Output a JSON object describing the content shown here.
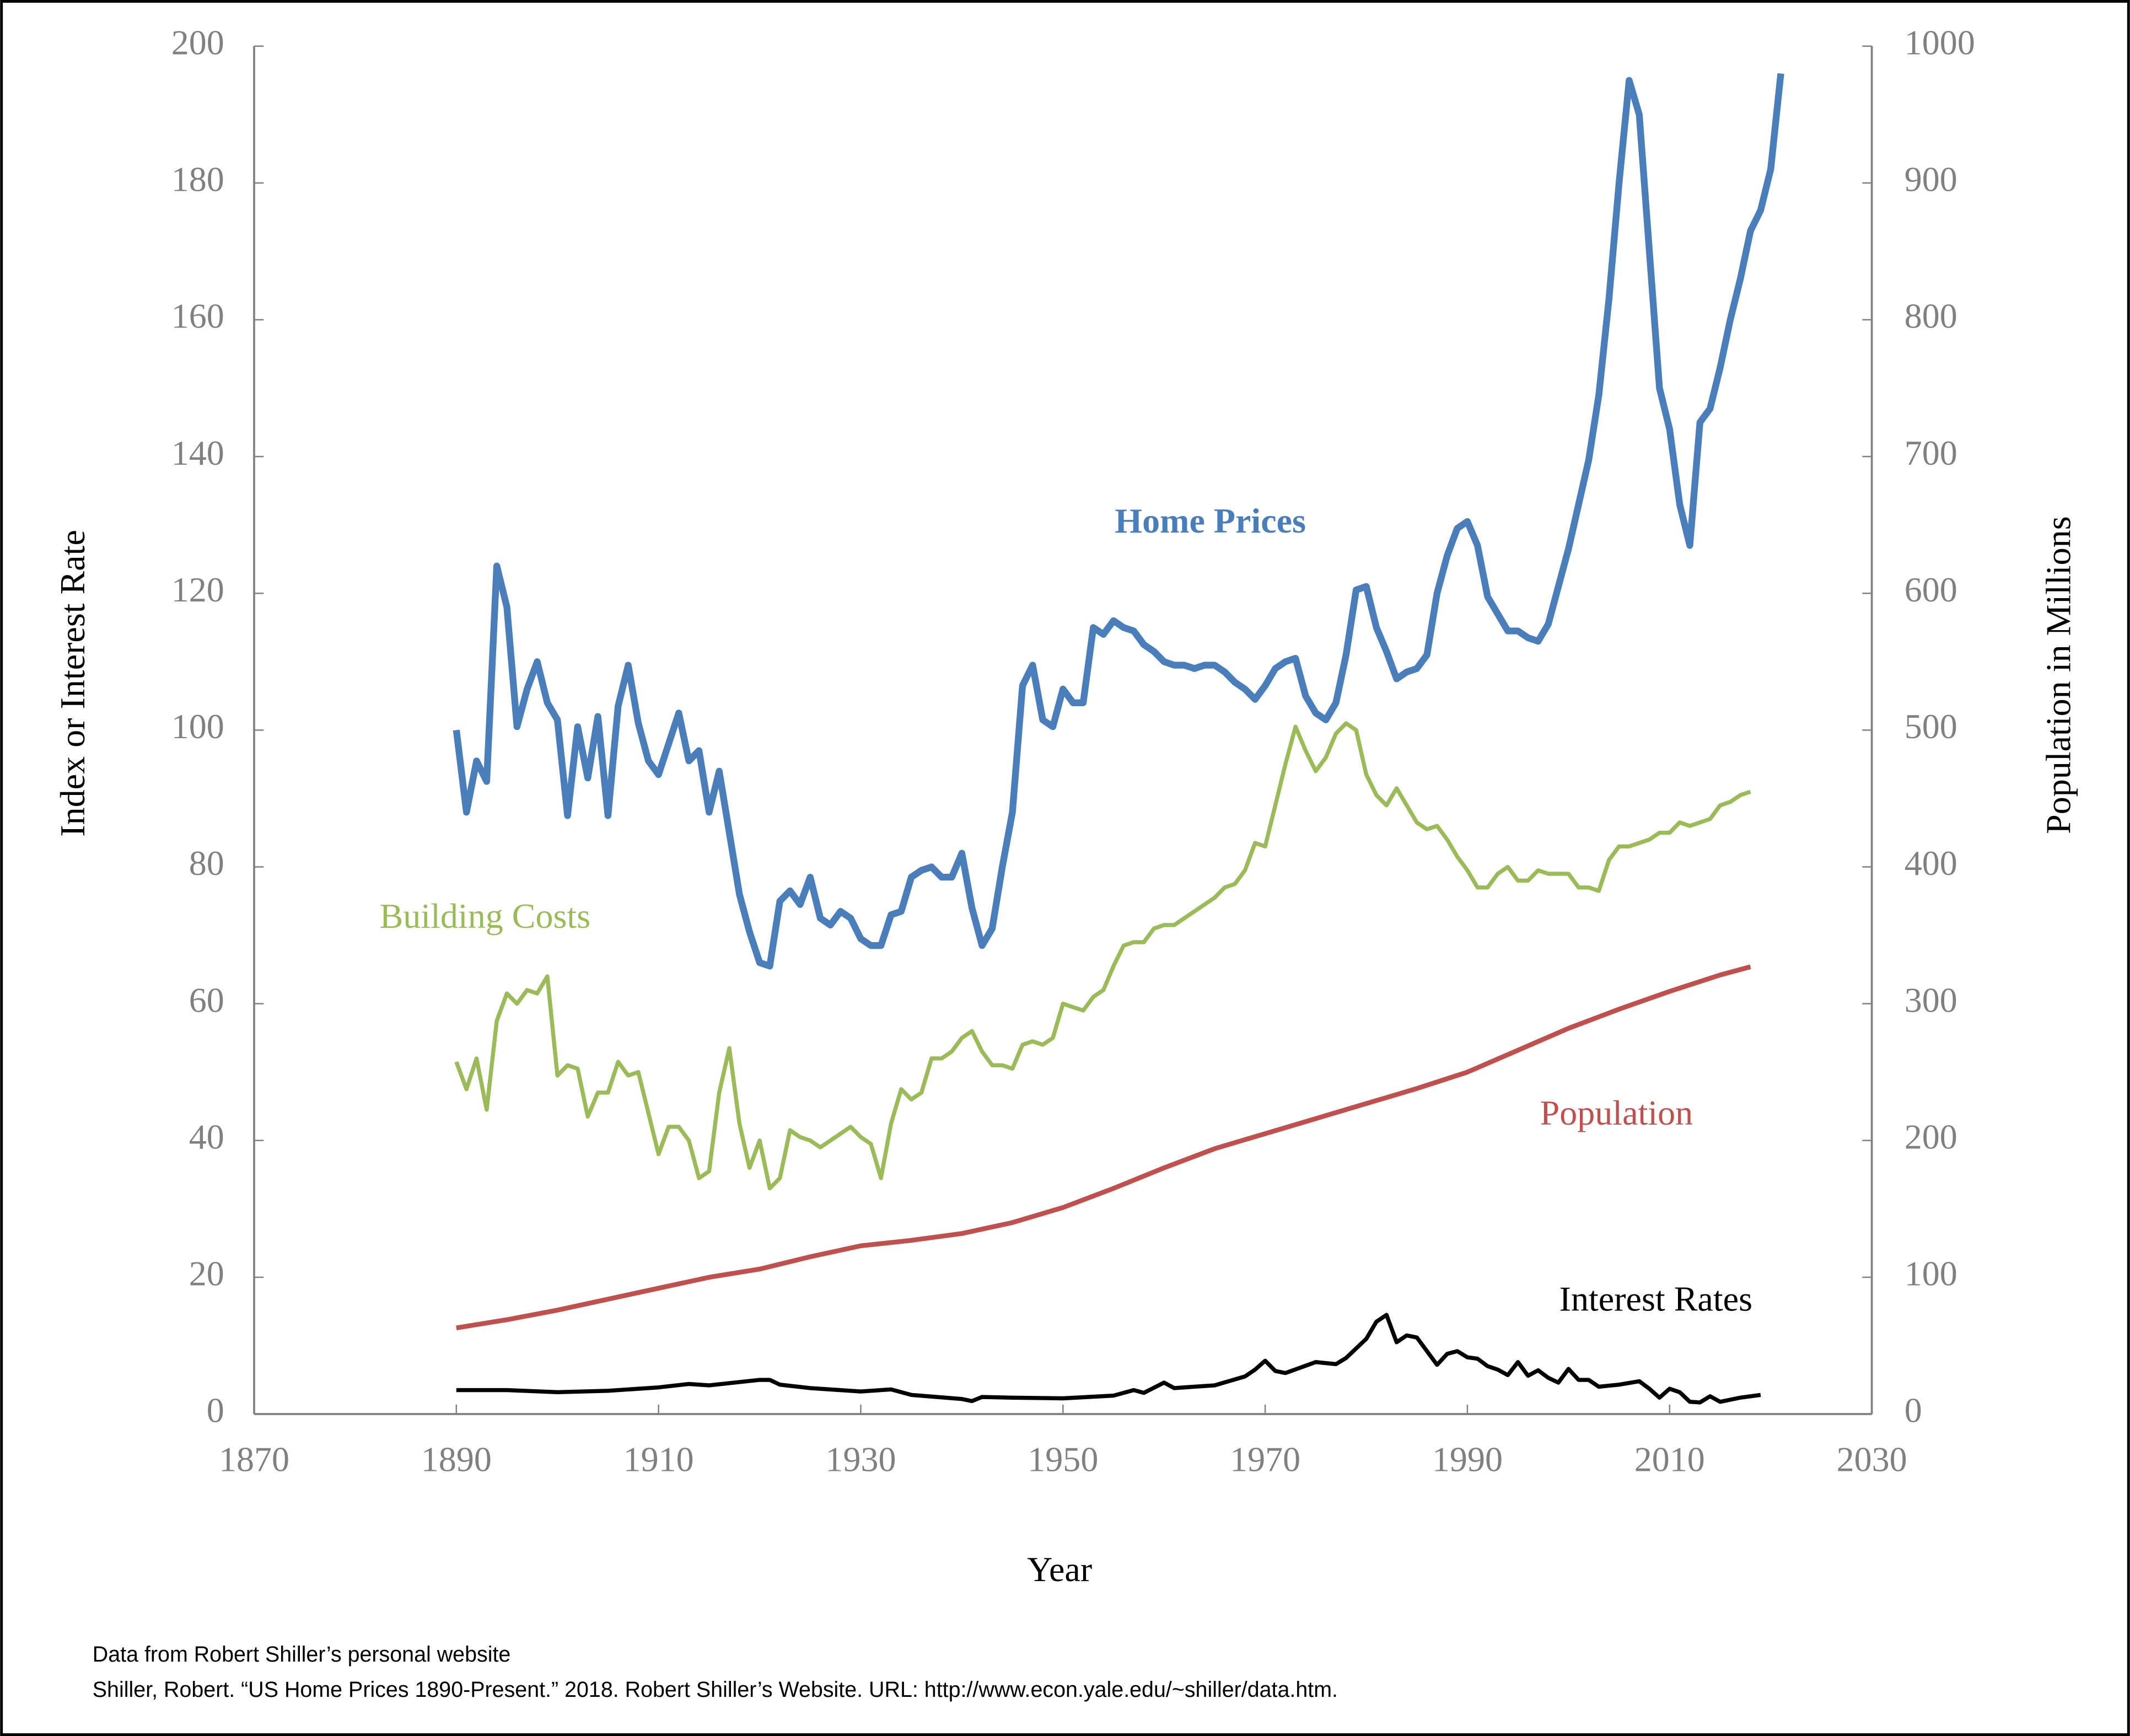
{
  "chart_data": {
    "type": "line",
    "xlabel": "Year",
    "ylabel": "Index or Interest Rate",
    "y2label": "Population in Millions",
    "xlim": [
      1870,
      2030
    ],
    "xticks": [
      1870,
      1890,
      1910,
      1930,
      1950,
      1970,
      1990,
      2010,
      2030
    ],
    "ylim": [
      0,
      200
    ],
    "yticks": [
      0,
      20,
      40,
      60,
      80,
      100,
      120,
      140,
      160,
      180,
      200
    ],
    "y2lim": [
      0,
      1000
    ],
    "y2ticks": [
      0,
      100,
      200,
      300,
      400,
      500,
      600,
      700,
      800,
      900,
      1000
    ],
    "series": [
      {
        "name": "Home Prices",
        "color": "#4a7ebb",
        "x": [
          1890,
          1891,
          1892,
          1893,
          1894,
          1895,
          1896,
          1897,
          1898,
          1899,
          1900,
          1901,
          1902,
          1903,
          1904,
          1905,
          1906,
          1907,
          1908,
          1909,
          1910,
          1911,
          1912,
          1913,
          1914,
          1915,
          1916,
          1917,
          1918,
          1919,
          1920,
          1921,
          1922,
          1923,
          1924,
          1925,
          1926,
          1927,
          1928,
          1929,
          1930,
          1931,
          1932,
          1933,
          1934,
          1935,
          1936,
          1937,
          1938,
          1939,
          1940,
          1941,
          1942,
          1943,
          1944,
          1945,
          1946,
          1947,
          1948,
          1949,
          1950,
          1951,
          1952,
          1953,
          1954,
          1955,
          1956,
          1957,
          1958,
          1959,
          1960,
          1961,
          1962,
          1963,
          1964,
          1965,
          1966,
          1967,
          1968,
          1969,
          1970,
          1971,
          1972,
          1973,
          1974,
          1975,
          1976,
          1977,
          1978,
          1979,
          1980,
          1981,
          1982,
          1983,
          1984,
          1985,
          1986,
          1987,
          1988,
          1989,
          1990,
          1991,
          1992,
          1993,
          1994,
          1995,
          1996,
          1997,
          1998,
          1999,
          2000,
          2001,
          2002,
          2003,
          2004,
          2005,
          2006,
          2007,
          2008,
          2009,
          2010,
          2011,
          2012,
          2013,
          2014,
          2015,
          2016,
          2017,
          2018,
          2019,
          2020,
          2021
        ],
        "values": [
          100,
          88,
          95.5,
          92.5,
          124,
          118,
          100.5,
          106,
          110,
          104,
          101.5,
          87.5,
          100.5,
          93,
          102,
          87.5,
          103.5,
          109.5,
          101,
          95.5,
          93.5,
          98,
          102.5,
          95.5,
          97,
          88,
          94,
          85,
          76,
          70.5,
          66,
          65.5,
          75,
          76.5,
          74.5,
          78.5,
          72.5,
          71.5,
          73.5,
          72.5,
          69.5,
          68.5,
          68.5,
          73,
          73.5,
          78.5,
          79.5,
          80,
          78.5,
          78.5,
          82,
          74,
          68.5,
          71,
          80,
          88,
          106.5,
          109.5,
          101.5,
          100.5,
          106,
          104,
          104,
          115,
          114,
          116,
          115,
          114.5,
          112.5,
          111.5,
          110,
          109.5,
          109.5,
          109,
          109.5,
          109.5,
          108.5,
          107,
          106,
          104.5,
          106.5,
          109,
          110,
          110.5,
          105,
          102.5,
          101.5,
          104,
          111,
          120.5,
          121,
          115,
          111.5,
          107.5,
          108.5,
          109,
          111,
          120,
          125.5,
          129.5,
          130.5,
          127,
          119.5,
          117,
          114.5,
          114.5,
          113.5,
          113,
          115.5,
          121,
          126.5,
          133,
          139.5,
          149,
          163,
          180,
          195,
          190,
          170,
          150,
          144,
          133,
          127,
          145,
          147,
          153,
          160,
          166,
          173,
          176,
          182,
          196
        ]
      },
      {
        "name": "Building Costs",
        "color": "#9bbb59",
        "x": [
          1890,
          1891,
          1892,
          1893,
          1894,
          1895,
          1896,
          1897,
          1898,
          1899,
          1900,
          1901,
          1902,
          1903,
          1904,
          1905,
          1906,
          1907,
          1908,
          1909,
          1910,
          1911,
          1912,
          1913,
          1914,
          1915,
          1916,
          1917,
          1918,
          1919,
          1920,
          1921,
          1922,
          1923,
          1924,
          1925,
          1926,
          1927,
          1928,
          1929,
          1930,
          1931,
          1932,
          1933,
          1934,
          1935,
          1936,
          1937,
          1938,
          1939,
          1940,
          1941,
          1942,
          1943,
          1944,
          1945,
          1946,
          1947,
          1948,
          1949,
          1950,
          1951,
          1952,
          1953,
          1954,
          1955,
          1956,
          1957,
          1958,
          1959,
          1960,
          1961,
          1962,
          1963,
          1964,
          1965,
          1966,
          1967,
          1968,
          1969,
          1970,
          1971,
          1972,
          1973,
          1974,
          1975,
          1976,
          1977,
          1978,
          1979,
          1980,
          1981,
          1982,
          1983,
          1984,
          1985,
          1986,
          1987,
          1988,
          1989,
          1990,
          1991,
          1992,
          1993,
          1994,
          1995,
          1996,
          1997,
          1998,
          1999,
          2000,
          2001,
          2002,
          2003,
          2004,
          2005,
          2006,
          2007,
          2008,
          2009,
          2010,
          2011,
          2012,
          2013,
          2014,
          2015,
          2016,
          2017,
          2018
        ],
        "values": [
          51.5,
          47.5,
          52,
          44.5,
          57.5,
          61.5,
          60,
          62,
          61.5,
          64,
          49.5,
          51,
          50.5,
          43.5,
          47,
          47,
          51.5,
          49.5,
          50,
          44,
          38,
          42,
          42,
          40,
          34.5,
          35.5,
          47,
          53.5,
          42.5,
          36,
          40,
          33,
          34.5,
          41.5,
          40.5,
          40,
          39,
          40,
          41,
          42,
          40.5,
          39.5,
          34.5,
          42.5,
          47.5,
          46,
          47,
          52,
          52,
          53,
          55,
          56,
          53,
          51,
          51,
          50.5,
          54,
          54.5,
          54,
          55,
          60,
          59.5,
          59,
          61,
          62,
          65.5,
          68.5,
          69,
          69,
          71,
          71.5,
          71.5,
          72.5,
          73.5,
          74.5,
          75.5,
          77,
          77.5,
          79.5,
          83.5,
          83,
          89,
          95,
          100.5,
          97,
          94,
          96,
          99.5,
          101,
          100,
          93.5,
          90.5,
          89,
          91.5,
          89,
          86.5,
          85.5,
          86,
          84,
          81.5,
          79.5,
          77,
          77,
          79,
          80,
          78,
          78,
          79.5,
          79,
          79,
          79,
          77,
          77,
          76.5,
          81,
          83,
          83,
          83.5,
          84,
          85,
          85,
          86.5,
          86,
          86.5,
          87,
          89,
          89.5,
          90.5,
          91
        ]
      },
      {
        "name": "Population",
        "color": "#c0504d",
        "axis": "y2",
        "x": [
          1890,
          1895,
          1900,
          1905,
          1910,
          1915,
          1920,
          1925,
          1930,
          1935,
          1940,
          1945,
          1950,
          1955,
          1960,
          1965,
          1970,
          1975,
          1980,
          1985,
          1990,
          1995,
          2000,
          2005,
          2010,
          2015,
          2018
        ],
        "values": [
          63,
          69,
          76,
          84,
          92,
          100,
          106,
          115,
          123,
          127,
          132,
          140,
          151,
          165,
          180,
          194,
          205,
          216,
          227,
          238,
          250,
          266,
          282,
          296,
          309,
          321,
          327
        ]
      },
      {
        "name": "Interest Rates",
        "color": "#000000",
        "x": [
          1890,
          1895,
          1900,
          1905,
          1910,
          1913,
          1915,
          1920,
          1921,
          1922,
          1925,
          1930,
          1933,
          1935,
          1940,
          1941,
          1942,
          1945,
          1950,
          1955,
          1957,
          1958,
          1960,
          1961,
          1965,
          1968,
          1969,
          1970,
          1971,
          1972,
          1975,
          1977,
          1978,
          1980,
          1981,
          1982,
          1983,
          1984,
          1985,
          1987,
          1988,
          1989,
          1990,
          1991,
          1992,
          1993,
          1994,
          1995,
          1996,
          1997,
          1998,
          1999,
          2000,
          2001,
          2002,
          2003,
          2005,
          2007,
          2008,
          2009,
          2010,
          2011,
          2012,
          2013,
          2014,
          2015,
          2017,
          2019
        ],
        "values": [
          3.5,
          3.5,
          3.2,
          3.4,
          3.9,
          4.4,
          4.2,
          5,
          5,
          4.3,
          3.8,
          3.3,
          3.6,
          2.8,
          2.2,
          1.9,
          2.5,
          2.4,
          2.3,
          2.7,
          3.5,
          3.1,
          4.6,
          3.8,
          4.2,
          5.5,
          6.5,
          7.8,
          6.3,
          6,
          7.6,
          7.3,
          8.2,
          11,
          13.5,
          14.5,
          10.5,
          11.5,
          11.2,
          7.2,
          8.8,
          9.2,
          8.3,
          8.1,
          7,
          6.5,
          5.7,
          7.6,
          5.6,
          6.4,
          5.3,
          4.6,
          6.6,
          5,
          5,
          4,
          4.3,
          4.8,
          3.7,
          2.4,
          3.7,
          3.2,
          1.8,
          1.7,
          2.6,
          1.8,
          2.4,
          2.8
        ]
      }
    ],
    "footnotes": [
      "Data from Robert Shiller’s personal website",
      "Shiller, Robert. “US Home Prices 1890-Present.” 2018. Robert Shiller’s Website. URL: http://www.econ.yale.edu/~shiller/data.htm."
    ]
  }
}
